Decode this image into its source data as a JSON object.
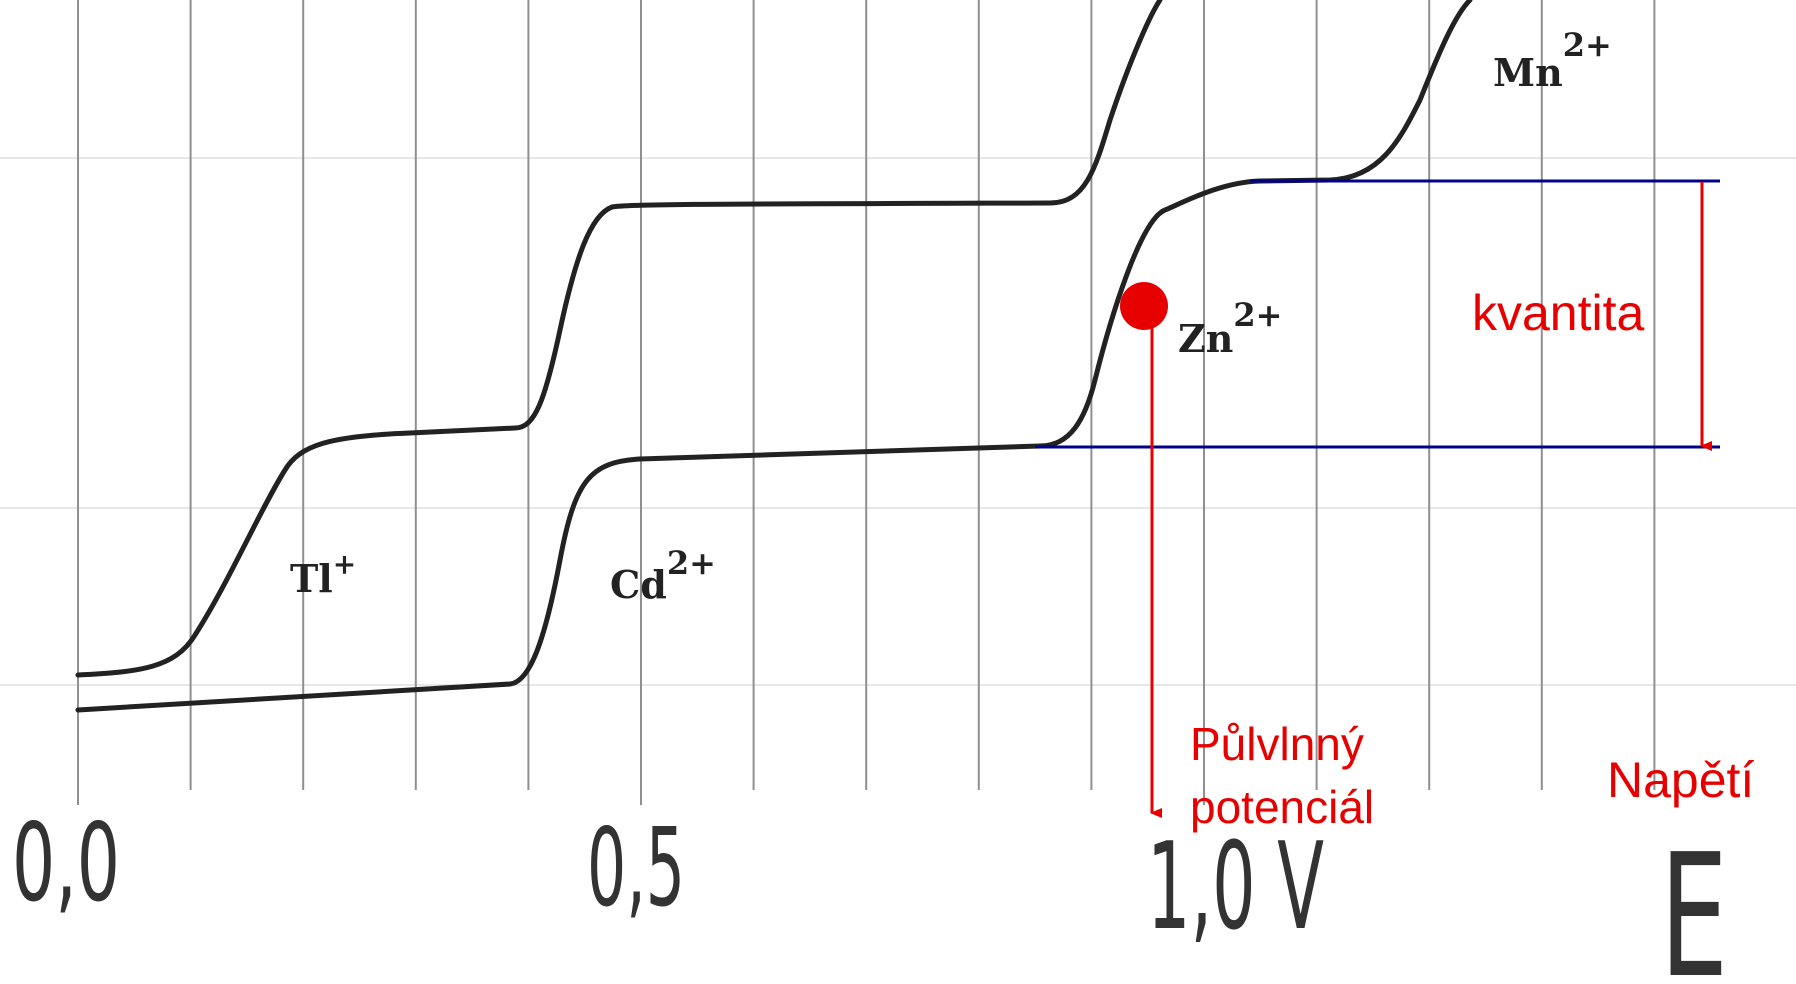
{
  "ticks": {
    "t0": "0,0",
    "t05": "0,5",
    "t10": "1,0 V",
    "E": "E"
  },
  "ions": {
    "tl": "Tl",
    "tl_sup": "+",
    "cd": "Cd",
    "cd_sup": "2+",
    "zn": "Zn",
    "zn_sup": "2+",
    "mn": "Mn",
    "mn_sup": "2+"
  },
  "annotations": {
    "kvantita": "kvantita",
    "pulvlnny_1": "Půlvlnný",
    "pulvlnny_2": "potenciál",
    "napeti": "Napětí"
  },
  "colors": {
    "curve": "#222222",
    "grid": "#9a9a9a",
    "annotation": "#e60000",
    "baseline": "#00008b"
  }
}
